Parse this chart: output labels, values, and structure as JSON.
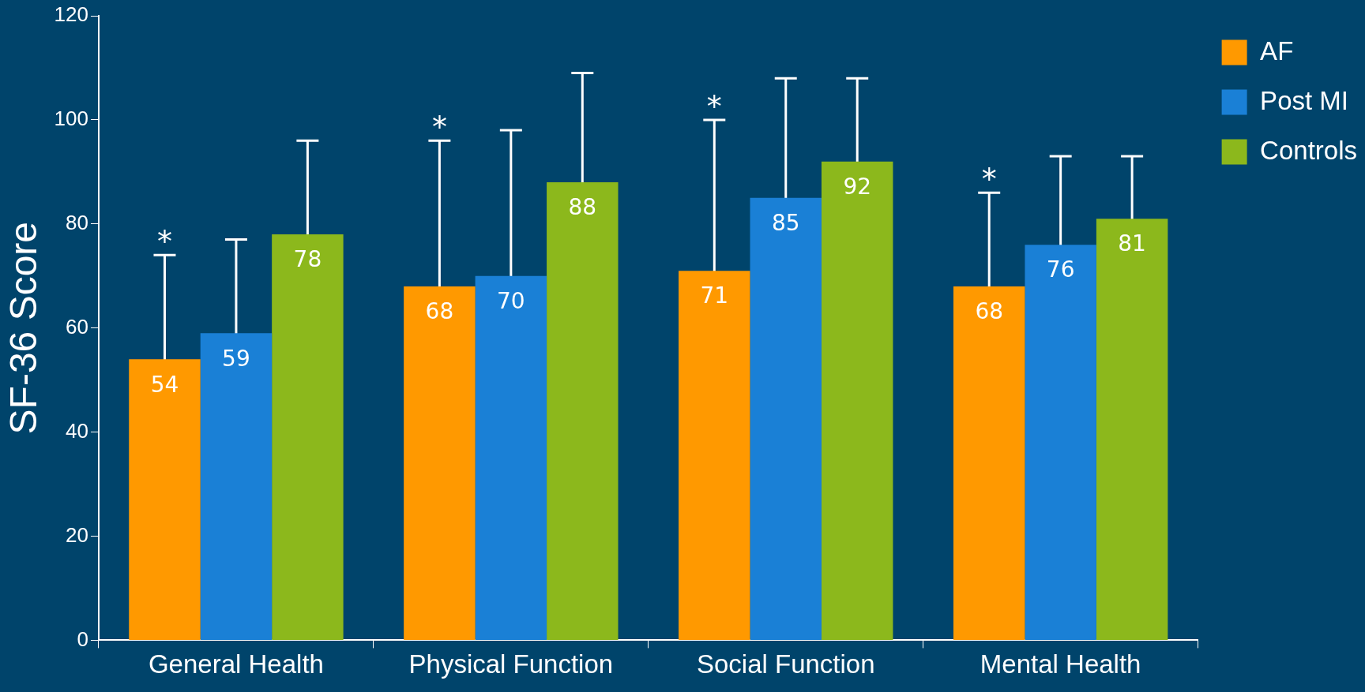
{
  "chart_data": {
    "type": "bar",
    "ylabel": "SF-36 Score",
    "categories": [
      "General Health",
      "Physical Function",
      "Social Function",
      "Mental Health"
    ],
    "series": [
      {
        "name": "AF",
        "color": "#ff9900",
        "values": [
          54,
          68,
          71,
          68
        ],
        "errors": [
          20,
          28,
          29,
          18
        ]
      },
      {
        "name": "Post MI",
        "color": "#1a80d6",
        "values": [
          59,
          70,
          85,
          76
        ],
        "errors": [
          18,
          28,
          23,
          17
        ]
      },
      {
        "name": "Controls",
        "color": "#8cb81c",
        "values": [
          78,
          88,
          92,
          81
        ],
        "errors": [
          18,
          21,
          16,
          12
        ]
      }
    ],
    "ylim": [
      0,
      120
    ],
    "yticks": [
      0,
      20,
      40,
      60,
      80,
      100,
      120
    ],
    "grid": false,
    "legend": "top right",
    "data_labels": true,
    "annotations": [
      "*",
      "*",
      "*",
      "*"
    ]
  }
}
